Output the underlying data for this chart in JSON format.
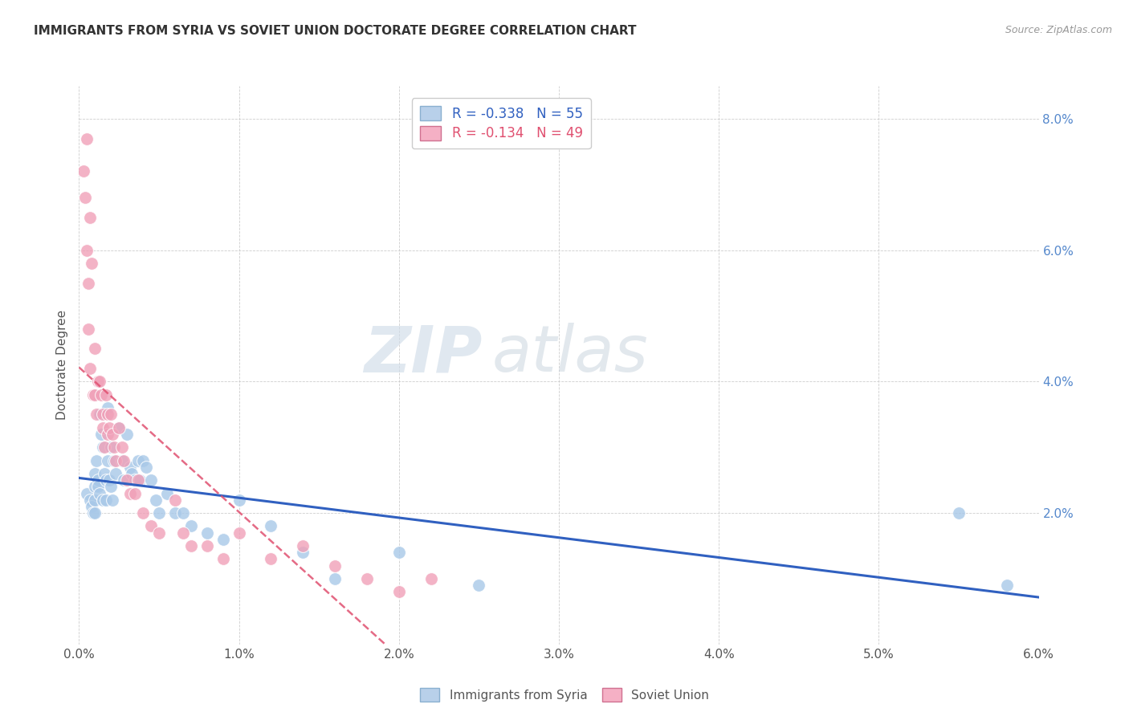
{
  "title": "IMMIGRANTS FROM SYRIA VS SOVIET UNION DOCTORATE DEGREE CORRELATION CHART",
  "source": "Source: ZipAtlas.com",
  "ylabel": "Doctorate Degree",
  "xlim": [
    0.0,
    0.06
  ],
  "ylim": [
    0.0,
    0.085
  ],
  "xticks": [
    0.0,
    0.01,
    0.02,
    0.03,
    0.04,
    0.05,
    0.06
  ],
  "xtick_labels": [
    "0.0%",
    "1.0%",
    "2.0%",
    "3.0%",
    "4.0%",
    "5.0%",
    "6.0%"
  ],
  "yticks_right": [
    0.0,
    0.02,
    0.04,
    0.06,
    0.08
  ],
  "ytick_labels_right": [
    "",
    "2.0%",
    "4.0%",
    "6.0%",
    "8.0%"
  ],
  "syria_color": "#a8c8e8",
  "soviet_color": "#f0a0b8",
  "syria_line_color": "#3060c0",
  "soviet_line_color": "#e05070",
  "background_color": "#ffffff",
  "grid_color": "#cccccc",
  "watermark_zip": "ZIP",
  "watermark_atlas": "atlas",
  "syria_x": [
    0.0005,
    0.0007,
    0.0008,
    0.0009,
    0.001,
    0.001,
    0.001,
    0.001,
    0.0011,
    0.0012,
    0.0012,
    0.0013,
    0.0013,
    0.0014,
    0.0015,
    0.0015,
    0.0016,
    0.0017,
    0.0017,
    0.0018,
    0.0018,
    0.0019,
    0.002,
    0.002,
    0.0021,
    0.0022,
    0.0023,
    0.0025,
    0.0027,
    0.0028,
    0.003,
    0.0032,
    0.0033,
    0.0035,
    0.0037,
    0.0038,
    0.004,
    0.0042,
    0.0045,
    0.0048,
    0.005,
    0.0055,
    0.006,
    0.0065,
    0.007,
    0.008,
    0.009,
    0.01,
    0.012,
    0.014,
    0.016,
    0.02,
    0.025,
    0.055,
    0.058
  ],
  "syria_y": [
    0.023,
    0.022,
    0.021,
    0.02,
    0.026,
    0.024,
    0.022,
    0.02,
    0.028,
    0.025,
    0.024,
    0.035,
    0.023,
    0.032,
    0.03,
    0.022,
    0.026,
    0.025,
    0.022,
    0.036,
    0.028,
    0.025,
    0.03,
    0.024,
    0.022,
    0.028,
    0.026,
    0.033,
    0.028,
    0.025,
    0.032,
    0.027,
    0.026,
    0.025,
    0.028,
    0.025,
    0.028,
    0.027,
    0.025,
    0.022,
    0.02,
    0.023,
    0.02,
    0.02,
    0.018,
    0.017,
    0.016,
    0.022,
    0.018,
    0.014,
    0.01,
    0.014,
    0.009,
    0.02,
    0.009
  ],
  "soviet_x": [
    0.0003,
    0.0004,
    0.0005,
    0.0005,
    0.0006,
    0.0006,
    0.0007,
    0.0007,
    0.0008,
    0.0009,
    0.001,
    0.001,
    0.0011,
    0.0012,
    0.0013,
    0.0014,
    0.0015,
    0.0015,
    0.0016,
    0.0017,
    0.0018,
    0.0018,
    0.0019,
    0.002,
    0.0021,
    0.0022,
    0.0023,
    0.0025,
    0.0027,
    0.0028,
    0.003,
    0.0032,
    0.0035,
    0.0037,
    0.004,
    0.0045,
    0.005,
    0.006,
    0.0065,
    0.007,
    0.008,
    0.009,
    0.01,
    0.012,
    0.014,
    0.016,
    0.018,
    0.02,
    0.022
  ],
  "soviet_y": [
    0.072,
    0.068,
    0.077,
    0.06,
    0.055,
    0.048,
    0.065,
    0.042,
    0.058,
    0.038,
    0.045,
    0.038,
    0.035,
    0.04,
    0.04,
    0.038,
    0.033,
    0.035,
    0.03,
    0.038,
    0.035,
    0.032,
    0.033,
    0.035,
    0.032,
    0.03,
    0.028,
    0.033,
    0.03,
    0.028,
    0.025,
    0.023,
    0.023,
    0.025,
    0.02,
    0.018,
    0.017,
    0.022,
    0.017,
    0.015,
    0.015,
    0.013,
    0.017,
    0.013,
    0.015,
    0.012,
    0.01,
    0.008,
    0.01
  ]
}
